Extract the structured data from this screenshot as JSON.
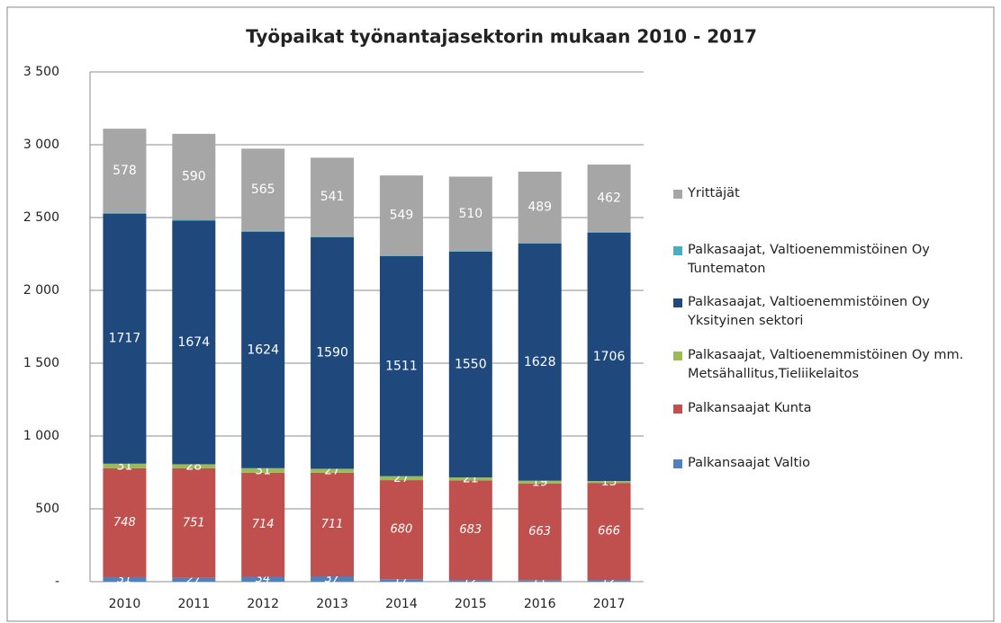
{
  "chart_data": {
    "type": "stacked_bar",
    "title": "Työpaikat työnantajasektorin mukaan  2010 - 2017",
    "categories": [
      "2010",
      "2011",
      "2012",
      "2013",
      "2014",
      "2015",
      "2016",
      "2017"
    ],
    "series": [
      {
        "name": "Palkansaajat Valtio",
        "color": "#4f81bd",
        "values": [
          31,
          27,
          34,
          37,
          17,
          12,
          11,
          12
        ]
      },
      {
        "name": "Palkansaajat Kunta",
        "color": "#c0504d",
        "values": [
          748,
          751,
          714,
          711,
          680,
          683,
          663,
          666
        ]
      },
      {
        "name": "Palkasaajat, Valtioenemmistöinen Oy mm. Metsähallitus,Tieliikelaitos",
        "color": "#9bbb59",
        "values": [
          31,
          28,
          31,
          27,
          27,
          21,
          19,
          13
        ]
      },
      {
        "name": "Palkasaajat, Valtioenemmistöinen Oy Yksityinen sektori",
        "color": "#1f497d",
        "values": [
          1717,
          1674,
          1624,
          1590,
          1511,
          1550,
          1628,
          1706
        ]
      },
      {
        "name": "Palkasaajat, Valtioenemmistöinen Oy Tuntematon",
        "color": "#4bacc6",
        "values": [
          5,
          5,
          5,
          5,
          5,
          5,
          5,
          5
        ],
        "data_labels": false
      },
      {
        "name": "Yrittäjät",
        "color": "#a6a6a6",
        "values": [
          578,
          590,
          565,
          541,
          549,
          510,
          489,
          462
        ]
      }
    ],
    "ylim": [
      0,
      3500
    ],
    "yticks": [
      {
        "value": 0,
        "label": "-"
      },
      500,
      {
        "value": 1000,
        "label": "1 000"
      },
      {
        "value": 1500,
        "label": "1 500"
      },
      {
        "value": 2000,
        "label": "2 000"
      },
      {
        "value": 2500,
        "label": "2 500"
      },
      {
        "value": 3000,
        "label": "3 000"
      },
      {
        "value": 3500,
        "label": "3 500"
      }
    ],
    "grid": true,
    "legend": "right"
  }
}
